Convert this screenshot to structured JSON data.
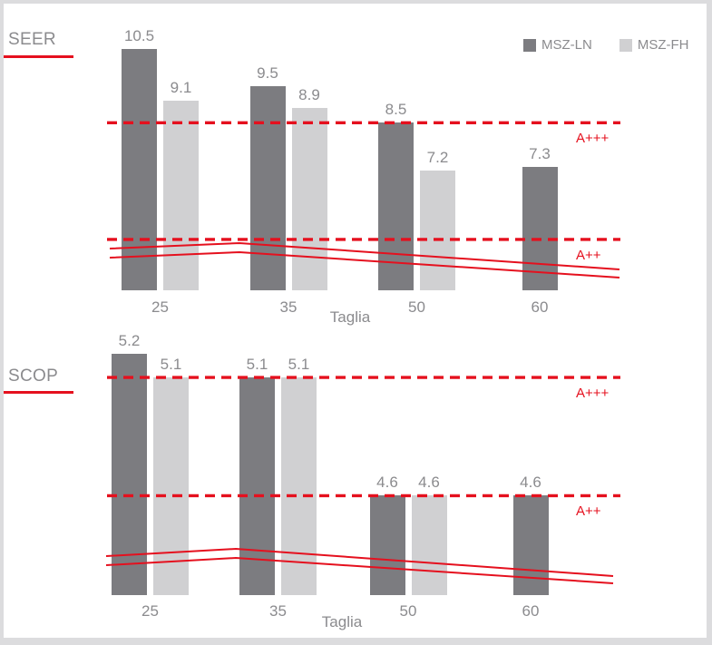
{
  "colors": {
    "bar_dark": "#7c7c80",
    "bar_light": "#d0d0d2",
    "text_gray": "#8b8b8e",
    "red": "#e5101e",
    "frame": "#dcdcde",
    "card_bg": "#ffffff"
  },
  "legend": {
    "items": [
      {
        "label": "MSZ-LN",
        "swatch": "dark"
      },
      {
        "label": "MSZ-FH",
        "swatch": "light"
      }
    ]
  },
  "chart_data": [
    {
      "id": "seer",
      "type": "bar",
      "title": "SEER",
      "xlabel": "Taglia",
      "categories": [
        "25",
        "35",
        "50",
        "60"
      ],
      "series": [
        {
          "name": "MSZ-LN",
          "values": [
            10.5,
            9.5,
            8.5,
            7.3
          ]
        },
        {
          "name": "MSZ-FH",
          "values": [
            9.1,
            8.9,
            7.2,
            null
          ]
        }
      ],
      "ylim": [
        3.95,
        11.34
      ],
      "grid": false,
      "legend_position": "top-right",
      "thresholds": [
        {
          "label": "A+++",
          "value": 8.5
        },
        {
          "label": "A++",
          "value": 5.33
        }
      ],
      "red_curves": [
        {
          "points": [
            [
              121,
              274
            ],
            [
              264,
              268
            ],
            [
              683,
              297
            ]
          ]
        },
        {
          "points": [
            [
              121,
              284
            ],
            [
              264,
              278
            ],
            [
              683,
              306
            ]
          ]
        }
      ]
    },
    {
      "id": "scop",
      "type": "bar",
      "title": "SCOP",
      "xlabel": "Taglia",
      "categories": [
        "25",
        "35",
        "50",
        "60"
      ],
      "series": [
        {
          "name": "MSZ-LN",
          "values": [
            5.2,
            5.1,
            4.6,
            4.6
          ]
        },
        {
          "name": "MSZ-FH",
          "values": [
            5.1,
            5.1,
            4.6,
            null
          ]
        }
      ],
      "ylim": [
        4.18,
        5.2
      ],
      "grid": false,
      "legend_position": "none",
      "thresholds": [
        {
          "label": "A+++",
          "value": 5.1
        },
        {
          "label": "A++",
          "value": 4.6
        }
      ],
      "red_curves": [
        {
          "points": [
            [
              117,
              613
            ],
            [
              260,
              605
            ],
            [
              676,
              635
            ]
          ]
        },
        {
          "points": [
            [
              117,
              623
            ],
            [
              260,
              615
            ],
            [
              676,
              643
            ]
          ]
        }
      ]
    }
  ]
}
